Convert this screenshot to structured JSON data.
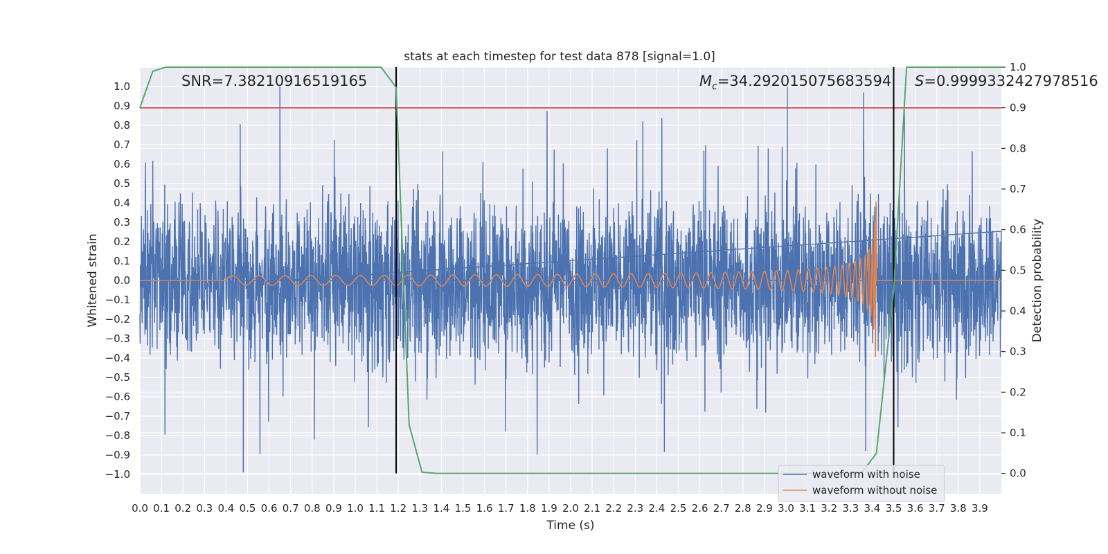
{
  "chart_data": {
    "type": "line",
    "title": "stats at each timestep for test data 878 [signal=1.0]",
    "xlabel": "Time (s)",
    "ylabel": "Whitened strain",
    "ylabel_right": "Detection probability",
    "xlim": [
      0.0,
      4.0
    ],
    "ylim": [
      -1.1,
      1.1
    ],
    "ylim_right": [
      -0.05,
      1.0
    ],
    "x_ticks": [
      "0.0",
      "0.1",
      "0.2",
      "0.3",
      "0.4",
      "0.5",
      "0.6",
      "0.7",
      "0.8",
      "0.9",
      "1.0",
      "1.1",
      "1.2",
      "1.3",
      "1.4",
      "1.5",
      "1.6",
      "1.7",
      "1.8",
      "1.9",
      "2.0",
      "2.1",
      "2.2",
      "2.3",
      "2.4",
      "2.5",
      "2.6",
      "2.7",
      "2.8",
      "2.9",
      "3.0",
      "3.1",
      "3.2",
      "3.3",
      "3.4",
      "3.5",
      "3.6",
      "3.7",
      "3.8",
      "3.9"
    ],
    "y_ticks": [
      "1.0",
      "0.9",
      "0.8",
      "0.7",
      "0.6",
      "0.5",
      "0.4",
      "0.3",
      "0.2",
      "0.1",
      "0.0",
      "−0.1",
      "−0.2",
      "−0.3",
      "−0.4",
      "−0.5",
      "−0.6",
      "−0.7",
      "−0.8",
      "−0.9",
      "−1.0"
    ],
    "y_right_ticks": [
      "1.0",
      "0.9",
      "0.8",
      "0.7",
      "0.6",
      "0.5",
      "0.4",
      "0.3",
      "0.2",
      "0.1",
      "0.0"
    ],
    "annotations": {
      "snr": "SNR=7.38210916519165",
      "mc_symbol": "M",
      "mc_subscript": "c",
      "mc_value": "=34.292015075683594",
      "s_symbol": "S",
      "s_value": "=0.9999332427978516"
    },
    "vertical_lines_x": [
      1.19,
      3.5
    ],
    "threshold_right": 0.9,
    "legend": {
      "position": "lower-right",
      "entries": [
        "waveform with noise",
        "waveform without noise"
      ]
    },
    "series": [
      {
        "name": "waveform with noise",
        "axis": "left",
        "color": "#4c72b0",
        "description": "noisy whitened strain, approx ±0.5 with spikes to ±1.0",
        "max": 1.0,
        "min": -0.99
      },
      {
        "name": "waveform without noise",
        "axis": "left",
        "color": "#dd8452",
        "chirp_start": 0.4,
        "chirp_end": 3.42,
        "peak_amplitude": 0.45
      },
      {
        "name": "Detection probability",
        "axis": "right",
        "color": "#55a868",
        "x": [
          0.0,
          0.06,
          0.12,
          0.5,
          1.0,
          1.12,
          1.19,
          1.25,
          1.31,
          1.38,
          2.0,
          3.0,
          3.35,
          3.42,
          3.5,
          3.56,
          3.7,
          4.0
        ],
        "y": [
          0.9,
          0.99,
          1.0,
          1.0,
          1.0,
          1.0,
          0.95,
          0.12,
          0.003,
          0.0,
          0.0,
          0.0,
          0.0,
          0.05,
          0.45,
          1.0,
          1.0,
          1.0
        ]
      },
      {
        "name": "threshold",
        "axis": "right",
        "color": "#c44e52",
        "y": 0.9
      }
    ],
    "colors": {
      "background": "#eaeaf2",
      "grid": "#ffffff",
      "noise": "#4c72b0",
      "clean": "#dd8452",
      "probability": "#55a868",
      "threshold": "#c44e52",
      "vline": "#000000"
    }
  }
}
